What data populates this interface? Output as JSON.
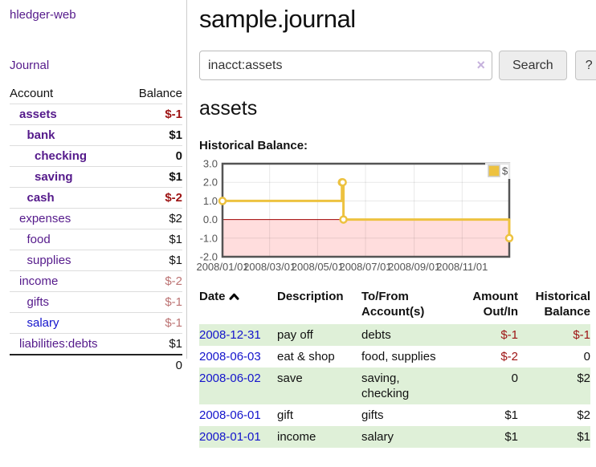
{
  "sidebar": {
    "brand": "hledger-web",
    "journal_link": "Journal",
    "accounts_table": {
      "headers": {
        "account": "Account",
        "balance": "Balance"
      },
      "rows": [
        {
          "name": "assets",
          "indent": 1,
          "bold": true,
          "link_color": "purple",
          "balance": "$-1",
          "balance_style": "neg-strong"
        },
        {
          "name": "bank",
          "indent": 2,
          "bold": true,
          "link_color": "purple",
          "balance": "$1",
          "balance_style": "pos-strong"
        },
        {
          "name": "checking",
          "indent": 3,
          "bold": true,
          "link_color": "purple",
          "balance": "0",
          "balance_style": "pos-strong"
        },
        {
          "name": "saving",
          "indent": 3,
          "bold": true,
          "link_color": "purple",
          "balance": "$1",
          "balance_style": "pos-strong"
        },
        {
          "name": "cash",
          "indent": 2,
          "bold": true,
          "link_color": "purple",
          "balance": "$-2",
          "balance_style": "neg-strong"
        },
        {
          "name": "expenses",
          "indent": 1,
          "bold": false,
          "link_color": "purple",
          "balance": "$2",
          "balance_style": "pos"
        },
        {
          "name": "food",
          "indent": 2,
          "bold": false,
          "link_color": "purple",
          "balance": "$1",
          "balance_style": "pos"
        },
        {
          "name": "supplies",
          "indent": 2,
          "bold": false,
          "link_color": "purple",
          "balance": "$1",
          "balance_style": "pos"
        },
        {
          "name": "income",
          "indent": 1,
          "bold": false,
          "link_color": "purple",
          "balance": "$-2",
          "balance_style": "neg-soft"
        },
        {
          "name": "gifts",
          "indent": 2,
          "bold": false,
          "link_color": "purple",
          "balance": "$-1",
          "balance_style": "neg-soft"
        },
        {
          "name": "salary",
          "indent": 2,
          "bold": false,
          "link_color": "blue",
          "balance": "$-1",
          "balance_style": "neg-soft"
        },
        {
          "name": "liabilities:debts",
          "indent": 1,
          "bold": false,
          "link_color": "purple",
          "balance": "$1",
          "balance_style": "pos"
        }
      ],
      "total": "0"
    }
  },
  "header": {
    "title": "sample.journal"
  },
  "search": {
    "value": "inacct:assets",
    "clear_icon": "×",
    "button_label": "Search",
    "help_label": "?"
  },
  "account_page": {
    "title": "assets",
    "chart_label": "Historical Balance:"
  },
  "chart_data": {
    "type": "line",
    "title": "Historical Balance:",
    "step": true,
    "series": [
      {
        "name": "$",
        "color": "#edc240",
        "points": [
          [
            "2008-01-01",
            1
          ],
          [
            "2008-06-01",
            2
          ],
          [
            "2008-06-02",
            2
          ],
          [
            "2008-06-03",
            0
          ],
          [
            "2008-12-31",
            -1
          ]
        ]
      }
    ],
    "x_range": [
      "2008-01-01",
      "2008-12-31"
    ],
    "x_ticks": [
      "2008/01/01",
      "2008/03/01",
      "2008/05/01",
      "2008/07/01",
      "2008/09/01",
      "2008/11/01"
    ],
    "y_ticks": [
      3.0,
      2.0,
      1.0,
      0.0,
      -1.0,
      -2.0
    ],
    "ylim": [
      -2,
      3
    ],
    "grid": true,
    "legend": {
      "label": "$",
      "position": "top-right"
    },
    "colors": {
      "border": "#545454",
      "axis_text": "#545454",
      "gridline": "rgba(0,0,0,0.09)",
      "negative_region": "#ffdddd",
      "zero_line": "#a00000",
      "point_fill": "#ffffff",
      "legend_box_border": "#cccccc"
    }
  },
  "register_table": {
    "headers": {
      "date": "Date",
      "description": "Description",
      "accounts": "To/From Account(s)",
      "amount": "Amount Out/In",
      "balance": "Historical Balance"
    },
    "rows": [
      {
        "date": "2008-12-31",
        "description": "pay off",
        "accounts": "debts",
        "amount": "$-1",
        "balance": "$-1",
        "shaded": true
      },
      {
        "date": "2008-06-03",
        "description": "eat & shop",
        "accounts": "food, supplies",
        "amount": "$-2",
        "balance": "0",
        "shaded": false
      },
      {
        "date": "2008-06-02",
        "description": "save",
        "accounts": "saving,\nchecking",
        "amount": "0",
        "balance": "$2",
        "shaded": true
      },
      {
        "date": "2008-06-01",
        "description": "gift",
        "accounts": "gifts",
        "amount": "$1",
        "balance": "$2",
        "shaded": false
      },
      {
        "date": "2008-01-01",
        "description": "income",
        "accounts": "salary",
        "amount": "$1",
        "balance": "$1",
        "shaded": true
      }
    ]
  }
}
